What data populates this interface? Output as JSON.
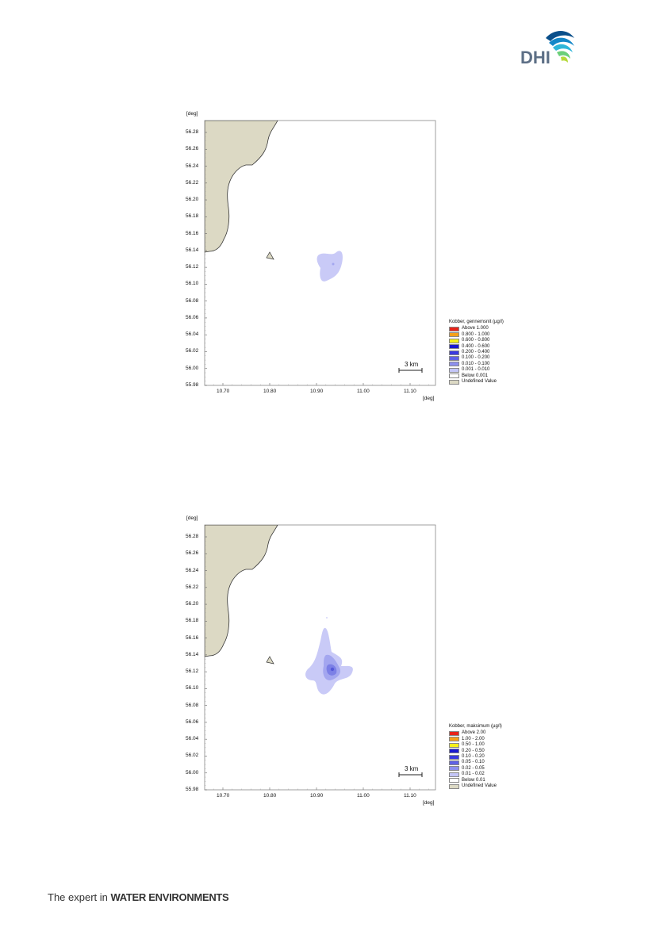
{
  "brand": {
    "logo_text": "DHI",
    "tagline_pre": "The expert in ",
    "tagline_bold": "WATER ENVIRONMENTS"
  },
  "colors": {
    "land": "#dcd9c4",
    "coast": "#333333",
    "plume_1": "#c9caf7",
    "plume_2": "#a3a6ef",
    "plume_3": "#7c80e6",
    "plume_4": "#5558d9"
  },
  "maps": [
    {
      "y_unit": "[deg]",
      "x_unit": "[deg]",
      "y_ticks": [
        "56.28",
        "56.26",
        "56.24",
        "56.22",
        "56.20",
        "56.18",
        "56.16",
        "56.14",
        "56.12",
        "56.10",
        "56.08",
        "56.06",
        "56.04",
        "56.02",
        "56.00",
        "55.98"
      ],
      "x_ticks": [
        "10.70",
        "10.80",
        "10.90",
        "11.00",
        "11.10"
      ],
      "scale_bar": "3 km",
      "legend_title": "Kobber, gennemsnit (µg/l)",
      "legend": [
        {
          "label": "Above  1.000",
          "color": "#e8241a"
        },
        {
          "label": "0.800 - 1.000",
          "color": "#f5a01a"
        },
        {
          "label": "0.600 - 0.800",
          "color": "#f5f01a"
        },
        {
          "label": "0.400 - 0.600",
          "color": "#1a1ad0"
        },
        {
          "label": "0.200 - 0.400",
          "color": "#3a3ae0"
        },
        {
          "label": "0.100 - 0.200",
          "color": "#5f62e6"
        },
        {
          "label": "0.010 - 0.100",
          "color": "#8d90ee"
        },
        {
          "label": "0.001 - 0.010",
          "color": "#c3c5f7"
        },
        {
          "label": "Below  0.001",
          "color": "#ffffff"
        },
        {
          "label": "Undefined Value",
          "color": "#dcd9c4"
        }
      ]
    },
    {
      "y_unit": "[deg]",
      "x_unit": "[deg]",
      "y_ticks": [
        "56.28",
        "56.26",
        "56.24",
        "56.22",
        "56.20",
        "56.18",
        "56.16",
        "56.14",
        "56.12",
        "56.10",
        "56.08",
        "56.06",
        "56.04",
        "56.02",
        "56.00",
        "55.98"
      ],
      "x_ticks": [
        "10.70",
        "10.80",
        "10.90",
        "11.00",
        "11.10"
      ],
      "scale_bar": "3 km",
      "legend_title": "Kobber, maksimum (µg/l)",
      "legend": [
        {
          "label": "Above 2.00",
          "color": "#e8241a"
        },
        {
          "label": "1.00 - 2.00",
          "color": "#f5a01a"
        },
        {
          "label": "0.50 - 1.00",
          "color": "#f5f01a"
        },
        {
          "label": "0.20 - 0.50",
          "color": "#1a1ad0"
        },
        {
          "label": "0.10 - 0.20",
          "color": "#3a3ae0"
        },
        {
          "label": "0.05 - 0.10",
          "color": "#5f62e6"
        },
        {
          "label": "0.02 - 0.05",
          "color": "#8d90ee"
        },
        {
          "label": "0.01 - 0.02",
          "color": "#c3c5f7"
        },
        {
          "label": "Below 0.01",
          "color": "#ffffff"
        },
        {
          "label": "Undefined Value",
          "color": "#dcd9c4"
        }
      ]
    }
  ]
}
